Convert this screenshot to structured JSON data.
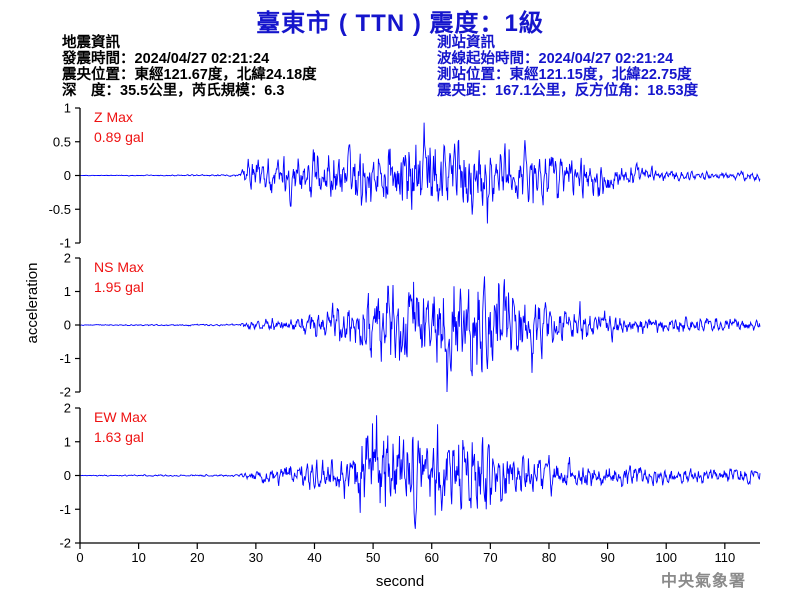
{
  "title": "臺東市 ( TTN ) 震度：1級",
  "earthquake_info": {
    "heading": "地震資訊",
    "origin_time": "發震時間：2024/04/27 02:21:24",
    "epicenter": "震央位置：東經121.67度，北緯24.18度",
    "depth_magnitude": "深　度：35.5公里，芮氏規模：6.3"
  },
  "station_info": {
    "heading": "測站資訊",
    "waveform_start": "波線起始時間：2024/04/27 02:21:24",
    "station_location": "測站位置：東經121.15度，北緯22.75度",
    "distance_azimuth": "震央距：167.1公里，反方位角：18.53度"
  },
  "watermark": "中央氣象署",
  "colors": {
    "title": "#1515cc",
    "station_info": "#1515cc",
    "trace": "#0000ff",
    "max_label": "#ee1111",
    "axis": "#000000"
  },
  "chart_data": {
    "type": "line",
    "xlabel": "second",
    "ylabel": "acceleration",
    "xlim": [
      0,
      116
    ],
    "x_ticks": [
      0,
      10,
      20,
      30,
      40,
      50,
      60,
      70,
      80,
      90,
      100,
      110
    ],
    "grid": false,
    "legend": "none",
    "sampling_interval_s": 0.1,
    "panels": [
      {
        "component": "Z",
        "max_label": "Z Max",
        "max_value": "0.89 gal",
        "ylim": [
          -1,
          1
        ],
        "y_ticks": [
          -1,
          -0.5,
          0,
          0.5,
          1
        ],
        "envelope_times_s": [
          0,
          27,
          29,
          35,
          45,
          50,
          55,
          60,
          65,
          70,
          75,
          80,
          85,
          90,
          95,
          100,
          105,
          116
        ],
        "envelope_values": [
          0.004,
          0.012,
          0.22,
          0.3,
          0.33,
          0.45,
          0.62,
          0.6,
          0.55,
          0.47,
          0.38,
          0.33,
          0.26,
          0.2,
          0.12,
          0.08,
          0.05,
          0.06
        ]
      },
      {
        "component": "NS",
        "max_label": "NS Max",
        "max_value": "1.95 gal",
        "ylim": [
          -2,
          2
        ],
        "y_ticks": [
          -2,
          -1,
          0,
          1,
          2
        ],
        "envelope_times_s": [
          0,
          27,
          29,
          35,
          45,
          50,
          55,
          60,
          65,
          70,
          75,
          80,
          85,
          90,
          95,
          100,
          105,
          116
        ],
        "envelope_values": [
          0.01,
          0.025,
          0.12,
          0.2,
          0.5,
          0.9,
          1.25,
          1.35,
          1.4,
          1.45,
          1.0,
          0.55,
          0.42,
          0.3,
          0.25,
          0.22,
          0.2,
          0.17
        ]
      },
      {
        "component": "EW",
        "max_label": "EW Max",
        "max_value": "1.63 gal",
        "ylim": [
          -2,
          2
        ],
        "y_ticks": [
          -2,
          -1,
          0,
          1,
          2
        ],
        "envelope_times_s": [
          0,
          27,
          29,
          35,
          45,
          50,
          55,
          60,
          65,
          70,
          75,
          80,
          85,
          90,
          95,
          100,
          105,
          116
        ],
        "envelope_values": [
          0.012,
          0.03,
          0.15,
          0.25,
          0.5,
          1.3,
          1.35,
          1.2,
          1.1,
          1.0,
          0.6,
          0.5,
          0.35,
          0.32,
          0.25,
          0.22,
          0.2,
          0.2
        ]
      }
    ]
  }
}
